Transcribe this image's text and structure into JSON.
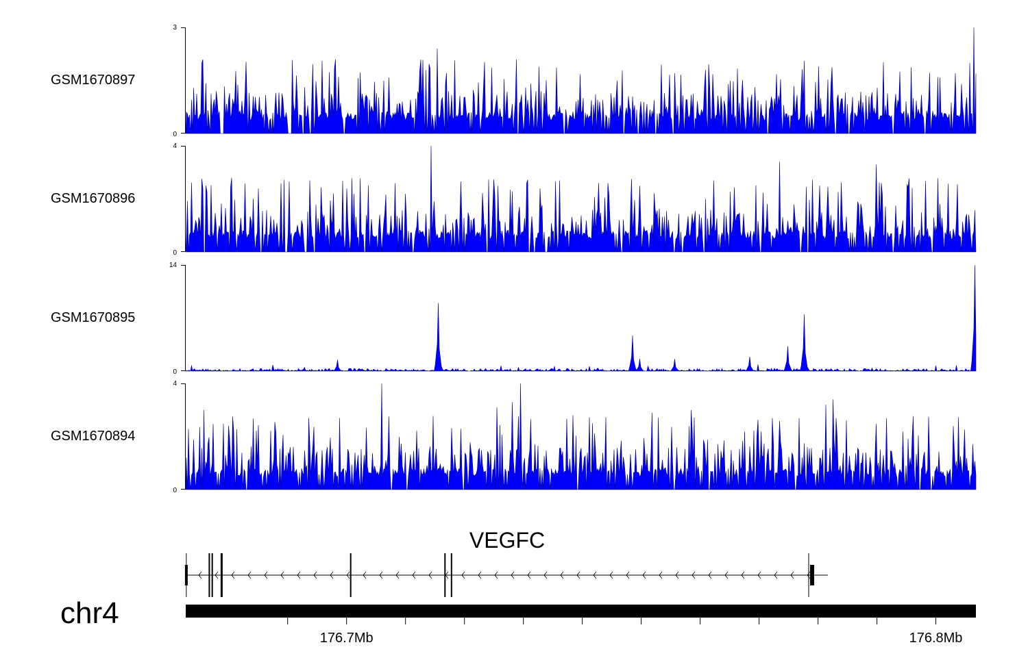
{
  "chart_data": {
    "type": "area",
    "chromosome": "chr4",
    "gene": {
      "name": "VEGFC",
      "strand": "-",
      "start_mb": 176.6727,
      "end_mb": 176.7787,
      "exons_mb": [
        176.6728,
        176.6767,
        176.6772,
        176.6788,
        176.7007,
        176.7167,
        176.7178,
        176.779
      ]
    },
    "axis": {
      "xlim_mb": [
        176.6727,
        176.8068
      ],
      "ticks_mb": [
        176.69,
        176.7,
        176.71,
        176.72,
        176.73,
        176.74,
        176.75,
        176.76,
        176.77,
        176.78,
        176.79,
        176.8
      ],
      "tick_labels": [
        {
          "mb": 176.7,
          "text": "176.7Mb"
        },
        {
          "mb": 176.8,
          "text": "176.8Mb"
        }
      ]
    },
    "tracks": [
      {
        "name": "GSM1670897",
        "ylim": [
          0,
          3
        ],
        "ytick_labels": [
          "0",
          "3"
        ],
        "color": "#0000ff",
        "edge": "#00008b",
        "peaks": [
          [
            176.6755,
            2
          ],
          [
            176.6986,
            1.6
          ],
          [
            176.7153,
            2.4
          ],
          [
            176.7297,
            1.1
          ],
          [
            176.7459,
            1.5
          ],
          [
            176.7647,
            1.4
          ],
          [
            176.8065,
            3
          ]
        ]
      },
      {
        "name": "GSM1670896",
        "ylim": [
          0,
          4
        ],
        "ytick_labels": [
          "0",
          "4"
        ],
        "color": "#0000ff",
        "edge": "#00008b",
        "peaks": [
          [
            176.6762,
            2.5
          ],
          [
            176.6937,
            2.7
          ],
          [
            176.7143,
            4
          ],
          [
            176.7306,
            2.6
          ],
          [
            176.7427,
            2.6
          ],
          [
            176.7623,
            2.7
          ],
          [
            176.7735,
            3.4
          ],
          [
            176.7898,
            3.3
          ],
          [
            176.7907,
            2.6
          ]
        ]
      },
      {
        "name": "GSM1670895",
        "ylim": [
          0,
          14
        ],
        "ytick_labels": [
          "0",
          "14"
        ],
        "color": "#0000ff",
        "edge": "#00008b",
        "peaks": [
          [
            176.6985,
            1.5
          ],
          [
            176.7155,
            9
          ],
          [
            176.7485,
            4.7
          ],
          [
            176.7497,
            1.6
          ],
          [
            176.7557,
            1.6
          ],
          [
            176.7685,
            1.9
          ],
          [
            176.7748,
            3.3
          ],
          [
            176.7777,
            7.5
          ],
          [
            176.8067,
            14
          ]
        ]
      },
      {
        "name": "GSM1670894",
        "ylim": [
          0,
          4
        ],
        "ytick_labels": [
          "0",
          "4"
        ],
        "color": "#0000ff",
        "edge": "#00008b",
        "peaks": [
          [
            176.6757,
            3
          ],
          [
            176.6935,
            2.7
          ],
          [
            176.706,
            4
          ],
          [
            176.7255,
            3.1
          ],
          [
            176.7281,
            3.3
          ],
          [
            176.7296,
            4
          ],
          [
            176.7384,
            2.8
          ],
          [
            176.7519,
            2.9
          ],
          [
            176.7585,
            3
          ],
          [
            176.7813,
            3.2
          ],
          [
            176.7826,
            3.4
          ]
        ]
      }
    ]
  }
}
